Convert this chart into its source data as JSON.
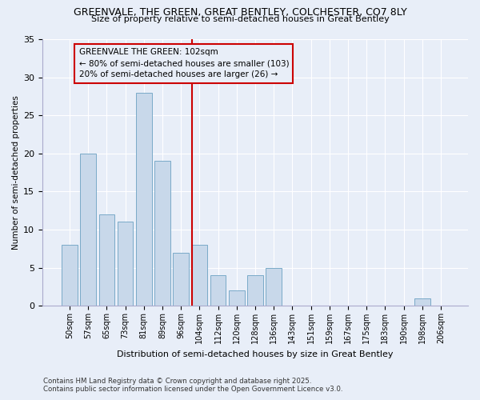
{
  "title_line1": "GREENVALE, THE GREEN, GREAT BENTLEY, COLCHESTER, CO7 8LY",
  "title_line2": "Size of property relative to semi-detached houses in Great Bentley",
  "xlabel": "Distribution of semi-detached houses by size in Great Bentley",
  "ylabel": "Number of semi-detached properties",
  "bar_labels": [
    "50sqm",
    "57sqm",
    "65sqm",
    "73sqm",
    "81sqm",
    "89sqm",
    "96sqm",
    "104sqm",
    "112sqm",
    "120sqm",
    "128sqm",
    "136sqm",
    "143sqm",
    "151sqm",
    "159sqm",
    "167sqm",
    "175sqm",
    "183sqm",
    "190sqm",
    "198sqm",
    "206sqm"
  ],
  "bar_values": [
    8,
    20,
    12,
    11,
    28,
    19,
    7,
    8,
    4,
    2,
    4,
    5,
    0,
    0,
    0,
    0,
    0,
    0,
    0,
    1,
    0
  ],
  "bar_color": "#c8d8ea",
  "bar_edge_color": "#7aaac8",
  "vline_index": 7,
  "vline_color": "#cc0000",
  "annotation_title": "GREENVALE THE GREEN: 102sqm",
  "annotation_line1": "← 80% of semi-detached houses are smaller (103)",
  "annotation_line2": "20% of semi-detached houses are larger (26) →",
  "annotation_box_color": "#cc0000",
  "ylim": [
    0,
    35
  ],
  "yticks": [
    0,
    5,
    10,
    15,
    20,
    25,
    30,
    35
  ],
  "background_color": "#e8eef8",
  "footer_line1": "Contains HM Land Registry data © Crown copyright and database right 2025.",
  "footer_line2": "Contains public sector information licensed under the Open Government Licence v3.0."
}
